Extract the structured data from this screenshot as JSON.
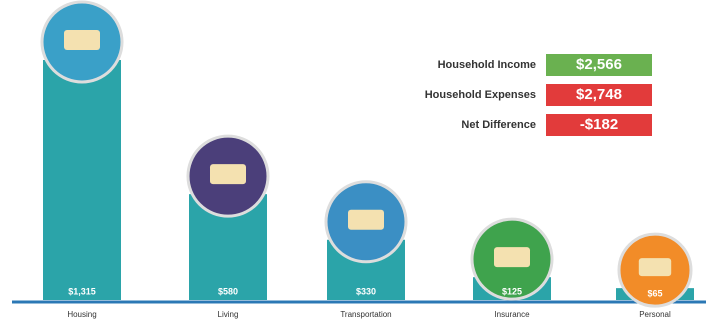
{
  "chart_data": {
    "type": "bar",
    "categories": [
      "Housing",
      "Living",
      "Transportation",
      "Insurance",
      "Personal"
    ],
    "values": [
      1315,
      580,
      330,
      125,
      65
    ],
    "value_labels": [
      "$1,315",
      "$580",
      "$330",
      "$125",
      "$65"
    ],
    "color": "#2ba4a9",
    "summary": [
      {
        "label": "Household Income",
        "value": 2566,
        "value_label": "$2,566",
        "color": "#6ab150"
      },
      {
        "label": "Household Expenses",
        "value": 2748,
        "value_label": "$2,748",
        "color": "#e23b3b"
      },
      {
        "label": "Net Difference",
        "value": -182,
        "value_label": "-$182",
        "color": "#e23b3b"
      }
    ]
  }
}
